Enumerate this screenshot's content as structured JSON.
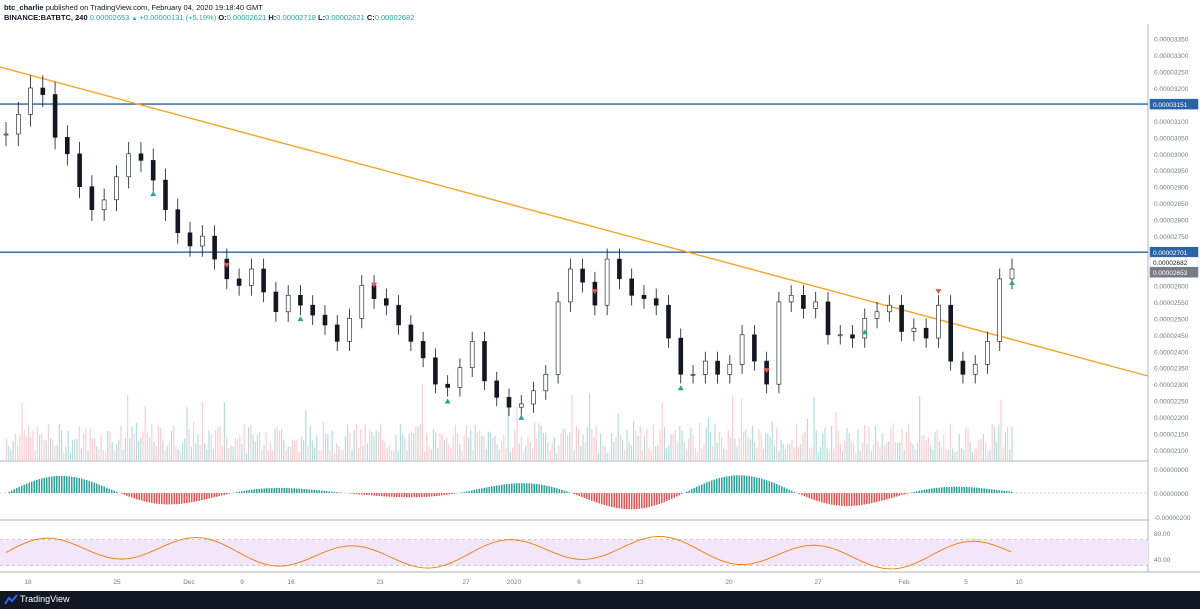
{
  "header": {
    "author": "btc_charlie",
    "published": "published on TradingView.com, February 04, 2020 19:18:40 GMT",
    "symbol": "BINANCE:BATBTC, 240",
    "last": "0.00002653",
    "change": "+0.00000131 (+5.19%)",
    "o_label": "O:",
    "o_val": "0.00002621",
    "h_label": "H:",
    "h_val": "0.00002718",
    "l_label": "L:",
    "l_val": "0.00002621",
    "c_label": "C:",
    "c_val": "0.00002682"
  },
  "footer": {
    "brand": "TradingView"
  },
  "colors": {
    "up": "#26a69a",
    "down": "#ef5350",
    "trendline": "#f5a623",
    "hline": "#2962a5",
    "rsi_band": "#f3e6fa",
    "rsi_line": "#f57c00"
  },
  "chart_data": [
    {
      "type": "line",
      "title": "BINANCE:BATBTC, 240",
      "x_ticks": [
        "18",
        "25",
        "Dec",
        "9",
        "16",
        "23",
        "27",
        "2020",
        "6",
        "13",
        "20",
        "27",
        "Feb",
        "5",
        "10"
      ],
      "y_ticks": [
        "0.00003350",
        "0.00003300",
        "0.00003250",
        "0.00003200",
        "0.00003100",
        "0.00003050",
        "0.00003000",
        "0.00002950",
        "0.00002900",
        "0.00002850",
        "0.00002800",
        "0.00002750",
        "0.00002600",
        "0.00002550",
        "0.00002500",
        "0.00002450",
        "0.00002400",
        "0.00002350",
        "0.00002300",
        "0.00002250",
        "0.00002200",
        "0.00002150",
        "0.00002100"
      ],
      "ylim": [
        2.1e-05,
        3.37e-05
      ],
      "price_labels": {
        "resistance_high": "0.00003151",
        "resistance_mid": "0.00002701",
        "close": "0.00002682",
        "last": "0.00002653"
      },
      "series": [
        {
          "values": [
            3.06e-05,
            3.12e-05,
            3.2e-05,
            3.18e-05,
            3.05e-05,
            3e-05,
            2.9e-05,
            2.83e-05,
            2.86e-05,
            2.93e-05,
            3e-05,
            2.98e-05,
            2.92e-05,
            2.83e-05,
            2.76e-05,
            2.72e-05,
            2.75e-05,
            2.68e-05,
            2.62e-05,
            2.6e-05,
            2.65e-05,
            2.58e-05,
            2.52e-05,
            2.57e-05,
            2.54e-05,
            2.51e-05,
            2.48e-05,
            2.43e-05,
            2.5e-05,
            2.6e-05,
            2.56e-05,
            2.54e-05,
            2.48e-05,
            2.43e-05,
            2.38e-05,
            2.3e-05,
            2.29e-05,
            2.35e-05,
            2.43e-05,
            2.31e-05,
            2.26e-05,
            2.23e-05,
            2.24e-05,
            2.28e-05,
            2.33e-05,
            2.55e-05,
            2.65e-05,
            2.61e-05,
            2.54e-05,
            2.68e-05,
            2.62e-05,
            2.57e-05,
            2.56e-05,
            2.54e-05,
            2.44e-05,
            2.33e-05,
            2.33e-05,
            2.37e-05,
            2.33e-05,
            2.36e-05,
            2.45e-05,
            2.37e-05,
            2.3e-05,
            2.55e-05,
            2.57e-05,
            2.53e-05,
            2.55e-05,
            2.45e-05,
            2.45e-05,
            2.44e-05,
            2.5e-05,
            2.52e-05,
            2.54e-05,
            2.46e-05,
            2.47e-05,
            2.44e-05,
            2.54e-05,
            2.37e-05,
            2.33e-05,
            2.36e-05,
            2.43e-05,
            2.62e-05,
            2.65e-05
          ]
        }
      ]
    },
    {
      "type": "bar",
      "title": "",
      "y_ticks": [
        "0.00000000",
        "-0.00000200"
      ]
    },
    {
      "type": "line",
      "title": "",
      "y_ticks": [
        "80.00",
        "40.00"
      ],
      "ylim": [
        20,
        100
      ]
    }
  ]
}
